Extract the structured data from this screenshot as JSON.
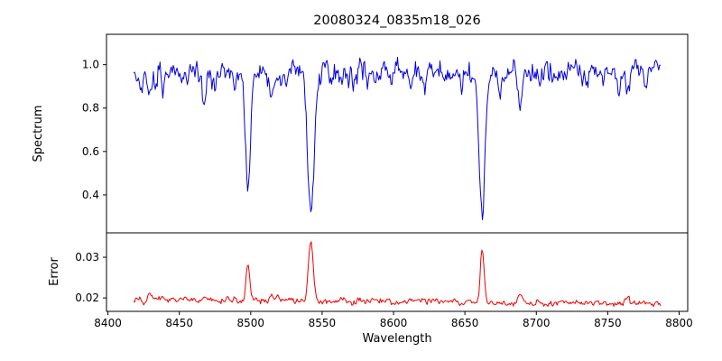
{
  "chart_data": {
    "type": "line",
    "title": "20080324_0835m18_026",
    "xlabel": "Wavelength",
    "grid": false,
    "legend": "none",
    "x_range": [
      8399,
      8806
    ],
    "x_ticks": [
      8400,
      8450,
      8500,
      8550,
      8600,
      8650,
      8700,
      8750,
      8800
    ],
    "x_data_range": [
      8418,
      8787
    ],
    "subplots": [
      {
        "ylabel": "Spectrum",
        "ylim": [
          0.225,
          1.14
        ],
        "ytick_labels": [
          "1.0",
          "0.8",
          "0.6",
          "0.4"
        ],
        "color": "#0000DD",
        "continuum": 0.965,
        "noise_sigma": 0.025,
        "absorption_lines": [
          {
            "center": 8498.0,
            "depth": 0.5,
            "width": 1.8
          },
          {
            "center": 8542.1,
            "depth": 0.67,
            "width": 2.2
          },
          {
            "center": 8662.1,
            "depth": 0.63,
            "width": 2.0
          },
          {
            "center": 8424.0,
            "depth": 0.08,
            "width": 1.0
          },
          {
            "center": 8429.5,
            "depth": 0.13,
            "width": 1.1
          },
          {
            "center": 8433.5,
            "depth": 0.11,
            "width": 0.9
          },
          {
            "center": 8439.0,
            "depth": 0.06,
            "width": 0.9
          },
          {
            "center": 8452.0,
            "depth": 0.07,
            "width": 1.0
          },
          {
            "center": 8467.5,
            "depth": 0.13,
            "width": 1.2
          },
          {
            "center": 8475.0,
            "depth": 0.06,
            "width": 0.9
          },
          {
            "center": 8489.0,
            "depth": 0.05,
            "width": 0.9
          },
          {
            "center": 8514.5,
            "depth": 0.12,
            "width": 1.1
          },
          {
            "center": 8525.0,
            "depth": 0.05,
            "width": 0.9
          },
          {
            "center": 8556.0,
            "depth": 0.05,
            "width": 0.9
          },
          {
            "center": 8582.0,
            "depth": 0.06,
            "width": 1.0
          },
          {
            "center": 8598.5,
            "depth": 0.08,
            "width": 1.2
          },
          {
            "center": 8611.0,
            "depth": 0.05,
            "width": 0.9
          },
          {
            "center": 8621.5,
            "depth": 0.07,
            "width": 1.1
          },
          {
            "center": 8648.0,
            "depth": 0.06,
            "width": 0.9
          },
          {
            "center": 8674.5,
            "depth": 0.09,
            "width": 1.1
          },
          {
            "center": 8688.5,
            "depth": 0.16,
            "width": 1.3
          },
          {
            "center": 8702.0,
            "depth": 0.05,
            "width": 0.9
          },
          {
            "center": 8713.5,
            "depth": 0.08,
            "width": 1.1
          },
          {
            "center": 8736.0,
            "depth": 0.07,
            "width": 1.0
          },
          {
            "center": 8747.0,
            "depth": 0.05,
            "width": 0.9
          },
          {
            "center": 8757.5,
            "depth": 0.06,
            "width": 0.9
          },
          {
            "center": 8764.0,
            "depth": 0.1,
            "width": 1.1
          },
          {
            "center": 8776.5,
            "depth": 0.07,
            "width": 1.0
          }
        ]
      },
      {
        "ylabel": "Error",
        "ylim": [
          0.0167,
          0.036
        ],
        "ytick_labels": [
          "0.03",
          "0.02"
        ],
        "color": "#EE0000",
        "baseline_start": 0.0196,
        "baseline_end": 0.0186,
        "noise_sigma": 0.00035,
        "peaks": [
          {
            "center": 8429.5,
            "height": 0.0015,
            "width": 1.5
          },
          {
            "center": 8467.5,
            "height": 0.0012,
            "width": 1.4
          },
          {
            "center": 8498.0,
            "height": 0.0086,
            "width": 1.3
          },
          {
            "center": 8514.5,
            "height": 0.001,
            "width": 1.2
          },
          {
            "center": 8542.1,
            "height": 0.0142,
            "width": 1.7
          },
          {
            "center": 8662.1,
            "height": 0.0138,
            "width": 1.3
          },
          {
            "center": 8688.5,
            "height": 0.0022,
            "width": 1.4
          },
          {
            "center": 8764.0,
            "height": 0.0012,
            "width": 1.2
          }
        ]
      }
    ]
  }
}
